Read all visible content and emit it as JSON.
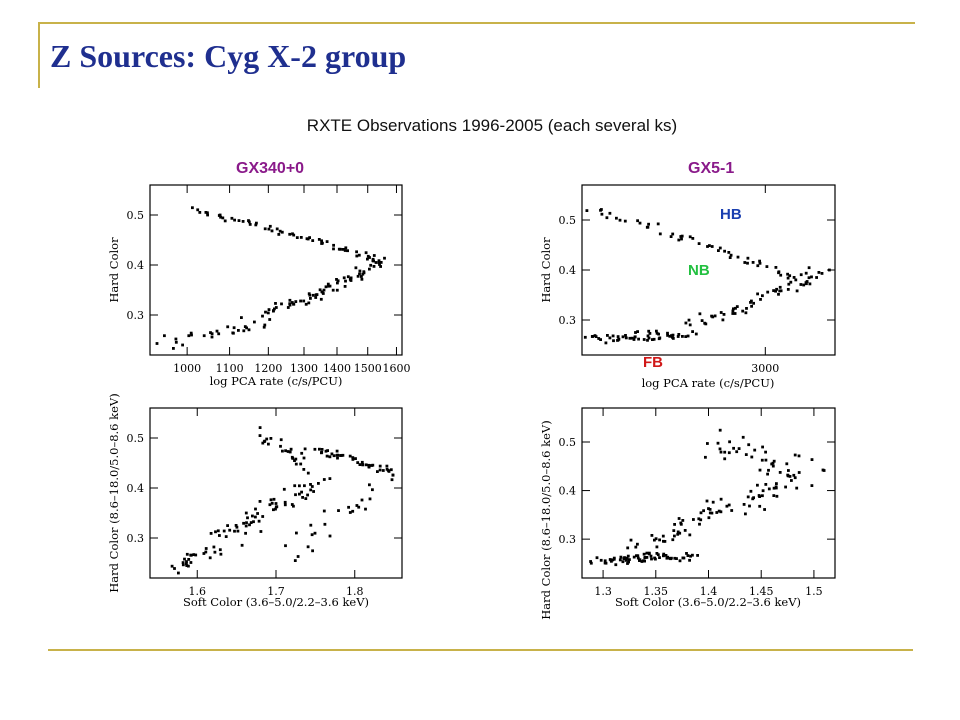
{
  "slide": {
    "title": "Z Sources: Cyg X-2 group",
    "subtitle": "RXTE Observations 1996-2005 (each several ks)",
    "left_label": "GX340+0",
    "right_label": "GX5-1",
    "branch_labels": {
      "hb": "HB",
      "nb": "NB",
      "fb": "FB"
    },
    "colors": {
      "title": "#1f2f8f",
      "panel_label": "#8a1a8a",
      "hb": "#1a3fb0",
      "nb": "#22c040",
      "fb": "#d01818",
      "rule": "#c8b24a"
    }
  },
  "chart_data": [
    {
      "type": "scatter",
      "name": "GX340+0 HID",
      "xlabel": "log PCA rate (c/s/PCU)",
      "ylabel": "Hard Color",
      "xscale": "log",
      "xlim": [
        920,
        1620
      ],
      "ylim": [
        0.22,
        0.56
      ],
      "xticks": [
        1000,
        1100,
        1200,
        1300,
        1400,
        1500,
        1600
      ],
      "xtick_labels": [
        "1000",
        "1100",
        "1200",
        "1300",
        "1400",
        "1500",
        "1600"
      ],
      "yticks": [
        0.3,
        0.4,
        0.5
      ],
      "ytick_labels": [
        "0.3",
        "0.4",
        "0.5"
      ],
      "branches": [
        {
          "x0": 1010,
          "x1": 1530,
          "y0": 0.51,
          "y1": 0.41,
          "n": 60,
          "jx": 30,
          "jy": 0.008
        },
        {
          "x0": 960,
          "x1": 1200,
          "y0": 0.245,
          "y1": 0.29,
          "n": 30,
          "jx": 45,
          "jy": 0.02
        },
        {
          "x0": 1200,
          "x1": 1550,
          "y0": 0.3,
          "y1": 0.41,
          "n": 70,
          "jx": 35,
          "jy": 0.015
        }
      ]
    },
    {
      "type": "scatter",
      "name": "GX340+0 CCD",
      "xlabel": "Soft Color (3.6–5.0/2.2–3.6 keV)",
      "ylabel": "Hard Color (8.6–18.0/5.0–8.6 keV)",
      "xlim": [
        1.54,
        1.86
      ],
      "ylim": [
        0.22,
        0.56
      ],
      "xticks": [
        1.6,
        1.7,
        1.8
      ],
      "xtick_labels": [
        "1.6",
        "1.7",
        "1.8"
      ],
      "yticks": [
        0.3,
        0.4,
        0.5
      ],
      "ytick_labels": [
        "0.3",
        "0.4",
        "0.5"
      ],
      "branches": [
        {
          "x0": 1.57,
          "x1": 1.62,
          "y0": 0.24,
          "y1": 0.28,
          "n": 25,
          "jx": 0.025,
          "jy": 0.02
        },
        {
          "x0": 1.63,
          "x1": 1.75,
          "y0": 0.3,
          "y1": 0.41,
          "n": 60,
          "jx": 0.03,
          "jy": 0.03
        },
        {
          "x0": 1.75,
          "x1": 1.85,
          "y0": 0.48,
          "y1": 0.43,
          "n": 45,
          "jx": 0.015,
          "jy": 0.012
        },
        {
          "x0": 1.68,
          "x1": 1.74,
          "y0": 0.51,
          "y1": 0.44,
          "n": 25,
          "jx": 0.015,
          "jy": 0.02
        },
        {
          "x0": 1.72,
          "x1": 1.84,
          "y0": 0.26,
          "y1": 0.42,
          "n": 25,
          "jx": 0.03,
          "jy": 0.03
        }
      ]
    },
    {
      "type": "scatter",
      "name": "GX5-1 HID",
      "xlabel": "log PCA rate (c/s/PCU)",
      "ylabel": "Hard Color",
      "xscale": "log",
      "xlim": [
        2000,
        3500
      ],
      "ylim": [
        0.23,
        0.57
      ],
      "xticks": [
        3000
      ],
      "xtick_labels": [
        "3000"
      ],
      "yticks": [
        0.3,
        0.4,
        0.5
      ],
      "ytick_labels": [
        "0.3",
        "0.4",
        "0.5"
      ],
      "branches": [
        {
          "x0": 2030,
          "x1": 3300,
          "y0": 0.52,
          "y1": 0.37,
          "n": 55,
          "jx": 60,
          "jy": 0.012
        },
        {
          "x0": 2020,
          "x1": 2500,
          "y0": 0.26,
          "y1": 0.27,
          "n": 55,
          "jx": 110,
          "jy": 0.015
        },
        {
          "x0": 2500,
          "x1": 3400,
          "y0": 0.28,
          "y1": 0.4,
          "n": 55,
          "jx": 90,
          "jy": 0.02
        }
      ]
    },
    {
      "type": "scatter",
      "name": "GX5-1 CCD",
      "xlabel": "Soft Color (3.6–5.0/2.2–3.6 keV)",
      "ylabel": "Hard Color (8.6–18.0/5.0–8.6 keV)",
      "xlim": [
        1.28,
        1.52
      ],
      "ylim": [
        0.22,
        0.57
      ],
      "xticks": [
        1.3,
        1.35,
        1.4,
        1.45,
        1.5
      ],
      "xtick_labels": [
        "1.3",
        "1.35",
        "1.4",
        "1.45",
        "1.5"
      ],
      "yticks": [
        0.3,
        0.4,
        0.5
      ],
      "ytick_labels": [
        "0.3",
        "0.4",
        "0.5"
      ],
      "branches": [
        {
          "x0": 1.3,
          "x1": 1.38,
          "y0": 0.255,
          "y1": 0.265,
          "n": 70,
          "jx": 0.025,
          "jy": 0.015
        },
        {
          "x0": 1.33,
          "x1": 1.5,
          "y0": 0.28,
          "y1": 0.44,
          "n": 80,
          "jx": 0.03,
          "jy": 0.035
        },
        {
          "x0": 1.4,
          "x1": 1.48,
          "y0": 0.5,
          "y1": 0.45,
          "n": 35,
          "jx": 0.03,
          "jy": 0.04
        }
      ]
    }
  ]
}
